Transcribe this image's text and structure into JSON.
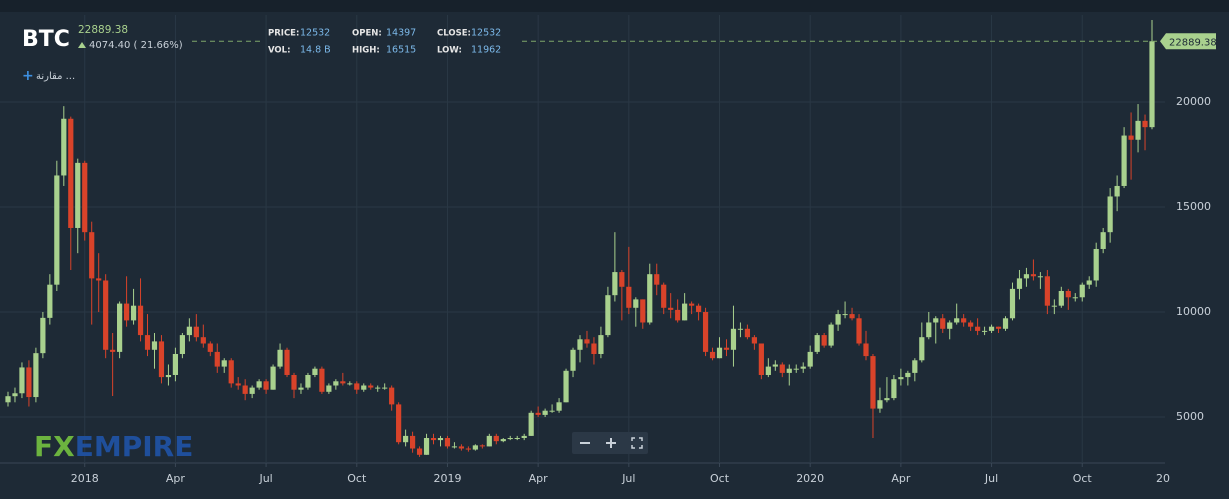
{
  "chart_data": {
    "type": "candlestick",
    "title": "BTC",
    "change": "4074.40 ( 21.66%)",
    "compare": "مقارنة ...",
    "logo": [
      "FX",
      "EMPIRE"
    ],
    "info": [
      {
        "label": "PRICE:",
        "value": 12532
      },
      {
        "label": "OPEN:",
        "value": 14397
      },
      {
        "label": "CLOSE:",
        "value": 12532
      },
      {
        "label": "VOL:",
        "value": "14.8 B"
      },
      {
        "label": "HIGH:",
        "value": 16515
      },
      {
        "label": "LOW:",
        "value": 11962
      }
    ],
    "up_color": "#a9d18e",
    "down_color": "#d9432a",
    "ylim": [
      2810,
      24140
    ],
    "yticks": [
      5000,
      10000,
      15000,
      20000
    ],
    "grid": true,
    "x_end_label": "20",
    "categories": [
      null,
      null,
      null,
      null,
      null,
      null,
      null,
      null,
      null,
      null,
      null,
      "2018",
      null,
      null,
      null,
      null,
      null,
      null,
      null,
      null,
      null,
      null,
      null,
      null,
      "Apr",
      null,
      null,
      null,
      null,
      null,
      null,
      null,
      null,
      null,
      null,
      null,
      null,
      "Jul",
      null,
      null,
      null,
      null,
      null,
      null,
      null,
      null,
      null,
      null,
      null,
      null,
      "Oct",
      null,
      null,
      null,
      null,
      null,
      null,
      null,
      null,
      null,
      null,
      null,
      null,
      "2019",
      null,
      null,
      null,
      null,
      null,
      null,
      null,
      null,
      null,
      null,
      null,
      null,
      "Apr",
      null,
      null,
      null,
      null,
      null,
      null,
      null,
      null,
      null,
      null,
      null,
      null,
      "Jul",
      null,
      null,
      null,
      null,
      null,
      null,
      null,
      null,
      null,
      null,
      null,
      null,
      "Oct",
      null,
      null,
      null,
      null,
      null,
      null,
      null,
      null,
      null,
      null,
      null,
      null,
      "2020",
      null,
      null,
      null,
      null,
      null,
      null,
      null,
      null,
      null,
      null,
      null,
      null,
      "Apr",
      null,
      null,
      null,
      null,
      null,
      null,
      null,
      null,
      null,
      null,
      null,
      null,
      "Jul",
      null,
      null,
      null,
      null,
      null,
      null,
      null,
      null,
      null,
      null,
      null,
      null,
      "Oct",
      null,
      null,
      null,
      null,
      null,
      null,
      null,
      null,
      null,
      null
    ],
    "open": [
      5700,
      5990,
      6130,
      7360,
      5950,
      8040,
      9720,
      11300,
      16500,
      19200,
      14000,
      17100,
      13800,
      11600,
      11500,
      8200,
      8100,
      10400,
      9600,
      10300,
      8900,
      8200,
      8600,
      6900,
      7000,
      8000,
      8900,
      9300,
      8800,
      8500,
      8100,
      7400,
      7700,
      6600,
      6500,
      6100,
      6400,
      6700,
      6300,
      7400,
      8200,
      7000,
      6300,
      6400,
      7000,
      7300,
      6200,
      6500,
      6700,
      6600,
      6600,
      6300,
      6500,
      6400,
      6400,
      6400,
      5600,
      3800,
      4100,
      3500,
      3200,
      4000,
      3900,
      4000,
      3600,
      3600,
      3500,
      3450,
      3650,
      3600,
      4100,
      3850,
      3950,
      4000,
      4000,
      4100,
      5200,
      5100,
      5300,
      5300,
      5700,
      7200,
      8200,
      8700,
      8500,
      8000,
      8900,
      10800,
      11900,
      11200,
      10200,
      10600,
      9500,
      11800,
      11300,
      10200,
      10100,
      9600,
      10400,
      10300,
      10000,
      8100,
      7800,
      8300,
      8200,
      9200,
      9200,
      8800,
      8500,
      7000,
      7400,
      7500,
      7100,
      7300,
      7300,
      7400,
      8100,
      8900,
      8400,
      9400,
      9900,
      9900,
      9700,
      8500,
      7900,
      5400,
      5800,
      5900,
      6800,
      6900,
      7100,
      7700,
      8800,
      9500,
      9700,
      9200,
      9500,
      9700,
      9500,
      9300,
      9100,
      9100,
      9300,
      9200,
      9700,
      11100,
      11600,
      11800,
      11700,
      11700,
      10300,
      10300,
      11000,
      10700,
      10700,
      11300,
      11500,
      13000,
      13800,
      15500,
      16000,
      18400,
      18200,
      19100,
      18800
    ],
    "high": [
      6200,
      6400,
      7600,
      7700,
      8300,
      10000,
      11800,
      17200,
      19800,
      19300,
      17300,
      17200,
      14300,
      12800,
      11800,
      9000,
      10500,
      11700,
      11100,
      11600,
      9900,
      9000,
      8900,
      7500,
      8300,
      9000,
      9700,
      9900,
      9400,
      8600,
      8500,
      7800,
      7800,
      6900,
      6800,
      6500,
      6800,
      6800,
      7500,
      8500,
      8300,
      7100,
      6600,
      7100,
      7400,
      7400,
      6600,
      6800,
      7100,
      6700,
      6700,
      6600,
      6600,
      6500,
      6600,
      6500,
      5700,
      4400,
      4300,
      3600,
      4200,
      4200,
      4100,
      4100,
      3800,
      3700,
      3600,
      3700,
      3700,
      4200,
      4200,
      4000,
      4100,
      4100,
      4200,
      5300,
      5500,
      5400,
      5600,
      5900,
      7300,
      8300,
      8900,
      9100,
      8800,
      9300,
      11200,
      13800,
      12000,
      13100,
      10700,
      10600,
      12300,
      12300,
      11400,
      10900,
      10600,
      10900,
      10500,
      10400,
      10200,
      8300,
      8800,
      8700,
      10300,
      9500,
      9400,
      8900,
      8500,
      7800,
      7700,
      7600,
      7500,
      7500,
      7600,
      8400,
      9000,
      9000,
      9500,
      10100,
      10500,
      10200,
      9900,
      9100,
      8000,
      6400,
      6900,
      7000,
      7300,
      7200,
      7800,
      9500,
      10000,
      9800,
      9900,
      9600,
      10400,
      9900,
      9600,
      9700,
      9300,
      9400,
      9300,
      9800,
      11400,
      12000,
      12100,
      12500,
      11900,
      12000,
      10600,
      11200,
      11100,
      10900,
      11400,
      11700,
      13300,
      14000,
      15900,
      16500,
      18800,
      19500,
      19900,
      19400,
      23900
    ],
    "low": [
      5500,
      5700,
      5900,
      5500,
      5700,
      7800,
      9400,
      11000,
      16000,
      12000,
      12800,
      13400,
      9400,
      10000,
      7800,
      6000,
      7800,
      9300,
      9400,
      8600,
      7900,
      7300,
      6600,
      6500,
      6700,
      7800,
      8600,
      8600,
      8300,
      7900,
      7100,
      7100,
      6400,
      6300,
      5800,
      5900,
      6300,
      6100,
      6300,
      7300,
      6900,
      5900,
      6100,
      6300,
      6900,
      6100,
      6100,
      6300,
      6500,
      6500,
      6100,
      6200,
      6300,
      6200,
      6300,
      5300,
      3700,
      3600,
      3300,
      3100,
      3200,
      3700,
      3600,
      3500,
      3500,
      3400,
      3350,
      3400,
      3500,
      3600,
      3700,
      3800,
      3900,
      3900,
      3900,
      4100,
      5000,
      5000,
      5200,
      5200,
      5700,
      6900,
      7600,
      8300,
      7500,
      7800,
      8800,
      10500,
      9600,
      9900,
      9300,
      9200,
      9400,
      10800,
      9900,
      9700,
      9500,
      9600,
      9900,
      9600,
      7900,
      7700,
      7800,
      7900,
      7400,
      8800,
      8700,
      8200,
      6800,
      6900,
      7200,
      6900,
      6500,
      7100,
      7100,
      7300,
      8000,
      8300,
      8300,
      9100,
      9700,
      9600,
      8400,
      7700,
      4000,
      5200,
      5700,
      5800,
      6500,
      6500,
      6700,
      7600,
      8700,
      8500,
      9000,
      8700,
      9400,
      9300,
      9100,
      8900,
      8900,
      9000,
      9000,
      9100,
      9600,
      10600,
      11200,
      11500,
      11100,
      9900,
      9900,
      10200,
      10100,
      10500,
      10500,
      11100,
      11200,
      12800,
      13300,
      14800,
      15900,
      16300,
      17600,
      17700,
      18700
    ],
    "close": [
      5990,
      6130,
      7360,
      5950,
      8040,
      9720,
      11300,
      16500,
      19200,
      14000,
      17100,
      13800,
      11600,
      11500,
      8200,
      8100,
      10400,
      9600,
      10300,
      8900,
      8200,
      8600,
      6900,
      7000,
      8000,
      8900,
      9300,
      8800,
      8500,
      8100,
      7400,
      7700,
      6600,
      6500,
      6100,
      6400,
      6700,
      6300,
      7400,
      8200,
      7000,
      6300,
      6400,
      7000,
      7300,
      6200,
      6500,
      6700,
      6600,
      6600,
      6300,
      6500,
      6400,
      6400,
      6400,
      5600,
      3800,
      4100,
      3500,
      3200,
      4000,
      3900,
      4000,
      3600,
      3600,
      3500,
      3450,
      3650,
      3600,
      4100,
      3850,
      3950,
      4000,
      4000,
      4100,
      5200,
      5100,
      5300,
      5300,
      5700,
      7200,
      8200,
      8700,
      8500,
      8000,
      8900,
      10800,
      11900,
      11200,
      10200,
      10600,
      9500,
      11800,
      11300,
      10200,
      10100,
      9600,
      10400,
      10300,
      10000,
      8100,
      7800,
      8300,
      8200,
      9200,
      9200,
      8800,
      8500,
      7000,
      7400,
      7500,
      7100,
      7300,
      7300,
      7400,
      8100,
      8900,
      8400,
      9400,
      9900,
      9900,
      9700,
      8500,
      7900,
      5400,
      5800,
      5900,
      6800,
      6900,
      7100,
      7700,
      8800,
      9500,
      9700,
      9200,
      9500,
      9700,
      9500,
      9300,
      9100,
      9100,
      9300,
      9200,
      9700,
      11100,
      11600,
      11800,
      11700,
      11700,
      10300,
      10300,
      11000,
      10700,
      10700,
      11300,
      11500,
      13000,
      13800,
      15500,
      16000,
      18400,
      18200,
      19100,
      18800,
      22889.38
    ]
  }
}
